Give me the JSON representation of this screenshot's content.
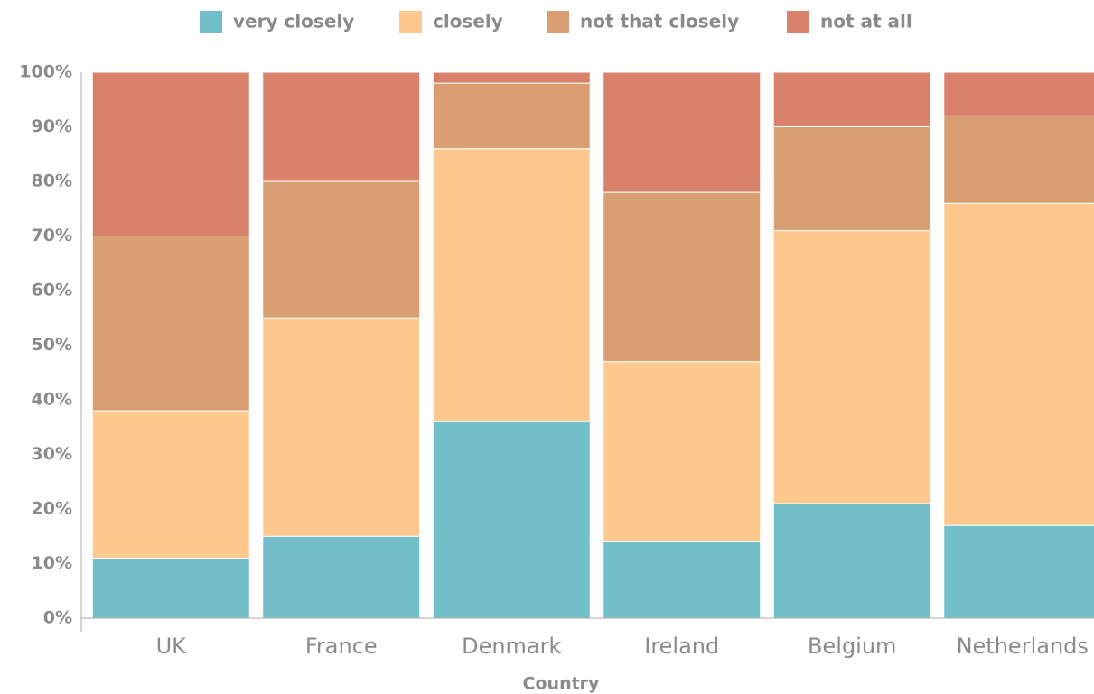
{
  "chart_data": {
    "type": "stacked-bar",
    "x_label": "Country",
    "categories": [
      "UK",
      "France",
      "Denmark",
      "Ireland",
      "Belgium",
      "Netherlands"
    ],
    "series": [
      {
        "name": "very closely",
        "color": "#72bfc9",
        "values": [
          11,
          15,
          36,
          14,
          21,
          17
        ]
      },
      {
        "name": "closely",
        "color": "#fdc98f",
        "values": [
          27,
          40,
          50,
          33,
          50,
          59
        ]
      },
      {
        "name": "not that closely",
        "color": "#d99f73",
        "values": [
          32,
          25,
          12,
          31,
          19,
          16
        ]
      },
      {
        "name": "not at all",
        "color": "#d8826c",
        "values": [
          30,
          20,
          2,
          22,
          10,
          8
        ]
      }
    ],
    "ylim": [
      0,
      100
    ],
    "yticks": [
      {
        "value": 0,
        "label": "0%"
      },
      {
        "value": 10,
        "label": "10%"
      },
      {
        "value": 20,
        "label": "20%"
      },
      {
        "value": 30,
        "label": "30%"
      },
      {
        "value": 40,
        "label": "40%"
      },
      {
        "value": 50,
        "label": "50%"
      },
      {
        "value": 60,
        "label": "60%"
      },
      {
        "value": 70,
        "label": "70%"
      },
      {
        "value": 80,
        "label": "80%"
      },
      {
        "value": 90,
        "label": "90%"
      },
      {
        "value": 100,
        "label": "100%"
      }
    ],
    "legend": "top"
  }
}
